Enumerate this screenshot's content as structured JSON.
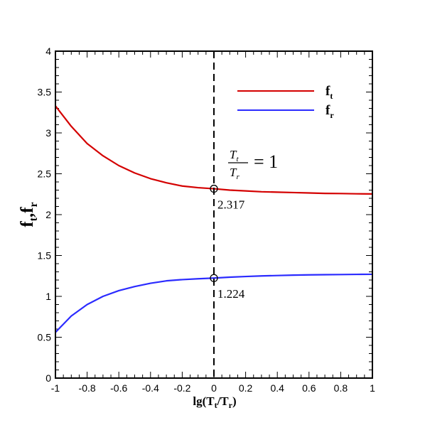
{
  "chart_data": {
    "type": "line",
    "xlabel": "lg(T_t/T_r)",
    "ylabel": "f_t,f_r",
    "xlim": [
      -1,
      1
    ],
    "ylim": [
      0,
      4
    ],
    "xticks": [
      -1,
      -0.8,
      -0.6,
      -0.4,
      -0.2,
      0,
      0.2,
      0.4,
      0.6,
      0.8,
      1
    ],
    "xtick_labels": [
      "-1",
      "-0.8",
      "-0.6",
      "-0.4",
      "-0.2",
      "0",
      "0.2",
      "0.4",
      "0.6",
      "0.8",
      "1"
    ],
    "yticks": [
      0,
      0.5,
      1,
      1.5,
      2,
      2.5,
      3,
      3.5,
      4
    ],
    "ytick_labels": [
      "0",
      "0.5",
      "1",
      "1.5",
      "2",
      "2.5",
      "3",
      "3.5",
      "4"
    ],
    "grid": false,
    "legend_position": "top-right",
    "series": [
      {
        "name": "f_t",
        "color": "#d40000",
        "x": [
          -1,
          -0.9,
          -0.8,
          -0.7,
          -0.6,
          -0.5,
          -0.4,
          -0.3,
          -0.2,
          -0.1,
          0,
          0.1,
          0.2,
          0.3,
          0.4,
          0.5,
          0.6,
          0.7,
          0.8,
          0.9,
          1
        ],
        "y": [
          3.33,
          3.08,
          2.87,
          2.72,
          2.6,
          2.51,
          2.44,
          2.39,
          2.35,
          2.33,
          2.317,
          2.3,
          2.29,
          2.28,
          2.275,
          2.27,
          2.265,
          2.26,
          2.258,
          2.255,
          2.253
        ]
      },
      {
        "name": "f_r",
        "color": "#2b2bff",
        "x": [
          -1,
          -0.9,
          -0.8,
          -0.7,
          -0.6,
          -0.5,
          -0.4,
          -0.3,
          -0.2,
          -0.1,
          0,
          0.1,
          0.2,
          0.3,
          0.4,
          0.5,
          0.6,
          0.7,
          0.8,
          0.9,
          1
        ],
        "y": [
          0.56,
          0.76,
          0.9,
          1.0,
          1.07,
          1.12,
          1.16,
          1.19,
          1.205,
          1.215,
          1.224,
          1.235,
          1.243,
          1.25,
          1.255,
          1.26,
          1.263,
          1.265,
          1.267,
          1.269,
          1.27
        ]
      }
    ],
    "vertical_line": {
      "x": 0,
      "style": "dashed"
    },
    "markers": [
      {
        "x": 0,
        "y": 2.317,
        "label": "2.317"
      },
      {
        "x": 0,
        "y": 1.224,
        "label": "1.224"
      }
    ],
    "annotation": {
      "numerator": "T_t",
      "denominator": "T_r",
      "rhs": "= 1"
    }
  }
}
